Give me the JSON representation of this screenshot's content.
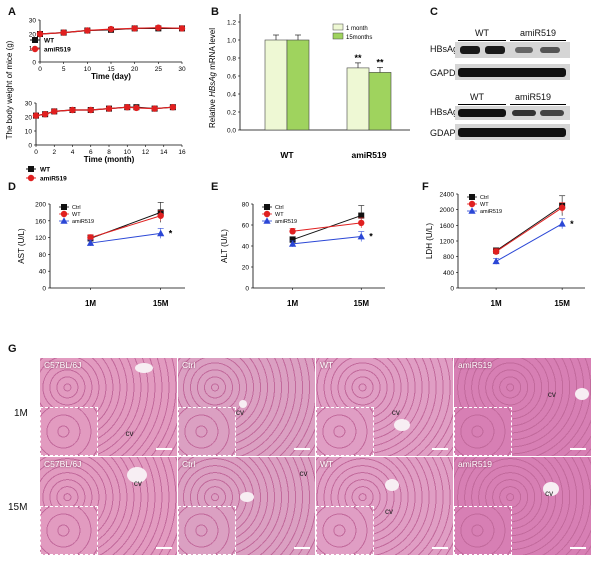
{
  "panels": {
    "A": {
      "letter": "A",
      "ylabel": "The body weight of mice (g)",
      "top": {
        "xlabel": "Time (day)",
        "x_ticks": [
          "0",
          "5",
          "10",
          "15",
          "20",
          "25",
          "30"
        ],
        "y_ticks": [
          "0",
          "10",
          "20",
          "30"
        ],
        "legend": [
          "WT",
          "amiR519"
        ],
        "x": [
          0,
          5,
          10,
          15,
          20,
          25,
          30
        ],
        "series": [
          {
            "name": "WT",
            "values": [
              20,
              21,
              22.5,
              23,
              24,
              24,
              24
            ]
          },
          {
            "name": "amiR519",
            "values": [
              20,
              21,
              22.5,
              23.5,
              24,
              24.5,
              24
            ]
          }
        ]
      },
      "bottom": {
        "xlabel": "Time (month)",
        "x_ticks": [
          "0",
          "2",
          "4",
          "6",
          "8",
          "10",
          "12",
          "14",
          "16"
        ],
        "y_ticks": [
          "0",
          "10",
          "20",
          "30"
        ],
        "legend": [
          "WT",
          "amiR519"
        ],
        "x": [
          0,
          1,
          2,
          4,
          6,
          8,
          10,
          11,
          13,
          15
        ],
        "series": [
          {
            "name": "WT",
            "values": [
              21,
              22,
              24,
              25,
              25,
              26,
              27,
              27,
              26,
              27
            ]
          },
          {
            "name": "amiR519",
            "values": [
              21,
              22,
              24,
              25,
              25,
              26,
              27,
              26.5,
              26,
              27
            ]
          }
        ]
      }
    },
    "B": {
      "letter": "B",
      "ylabel_pre": "Relative ",
      "ylabel_ital": "HBsAg",
      "ylabel_post": " mRNA level",
      "y_ticks": [
        "0.0",
        "0.2",
        "0.4",
        "0.6",
        "0.8",
        "1.0",
        "1.2"
      ],
      "legend": [
        "1 month",
        "15months"
      ],
      "groups": [
        "WT",
        "amiR519"
      ],
      "series": [
        {
          "name": "1 month",
          "values": [
            1.0,
            0.69
          ],
          "color": "#eef8d4"
        },
        {
          "name": "15months",
          "values": [
            1.0,
            0.64
          ],
          "color": "#9fd35e"
        }
      ],
      "sig": [
        "**",
        "**"
      ]
    },
    "C": {
      "letter": "C",
      "blot1": {
        "cols": [
          "WT",
          "amiR519"
        ],
        "rows": [
          "HBsAg",
          "GAPDH"
        ]
      },
      "blot2": {
        "cols": [
          "WT",
          "amiR519"
        ],
        "rows": [
          "HBsAg",
          "GDAPH"
        ]
      }
    },
    "D": {
      "letter": "D",
      "ylabel": "AST (U/L)",
      "y_ticks": [
        "0",
        "40",
        "80",
        "120",
        "160",
        "200"
      ],
      "x_ticks": [
        "1M",
        "15M"
      ],
      "legend": [
        "Ctrl",
        "WT",
        "amiR519"
      ],
      "series": [
        {
          "name": "Ctrl",
          "values": [
            118,
            180
          ]
        },
        {
          "name": "WT",
          "values": [
            120,
            172
          ]
        },
        {
          "name": "amiR519",
          "values": [
            107,
            130
          ]
        }
      ],
      "sig": "*"
    },
    "E": {
      "letter": "E",
      "ylabel": "ALT (U/L)",
      "y_ticks": [
        "0",
        "20",
        "40",
        "60",
        "80"
      ],
      "x_ticks": [
        "1M",
        "15M"
      ],
      "legend": [
        "Ctrl",
        "WT",
        "amiR519"
      ],
      "series": [
        {
          "name": "Ctrl",
          "values": [
            46,
            69
          ]
        },
        {
          "name": "WT",
          "values": [
            54,
            62
          ]
        },
        {
          "name": "amiR519",
          "values": [
            42,
            49
          ]
        }
      ],
      "sig": "*"
    },
    "F": {
      "letter": "F",
      "ylabel": "LDH (U/L)",
      "y_ticks": [
        "0",
        "400",
        "800",
        "1200",
        "1600",
        "2000",
        "2400"
      ],
      "x_ticks": [
        "1M",
        "15M"
      ],
      "legend": [
        "Ctrl",
        "WT",
        "amiR519"
      ],
      "series": [
        {
          "name": "Ctrl",
          "values": [
            950,
            2100
          ]
        },
        {
          "name": "WT",
          "values": [
            930,
            2050
          ]
        },
        {
          "name": "amiR519",
          "values": [
            680,
            1640
          ]
        }
      ],
      "sig": "*"
    },
    "G": {
      "letter": "G",
      "rows": [
        "1M",
        "15M"
      ],
      "tiles": [
        [
          "C57BL/6J",
          "Ctrl",
          "WT",
          "amiR519"
        ],
        [
          "C57BL/6J",
          "Ctrl",
          "WT",
          "amiR519"
        ]
      ],
      "cv_label": "cv"
    }
  },
  "colors": {
    "ctrl": "#111111",
    "wt": "#e02020",
    "amir519": "#2b47d6",
    "tissue_base": "#e29bc0",
    "tissue_dark": "#c26a9c"
  }
}
